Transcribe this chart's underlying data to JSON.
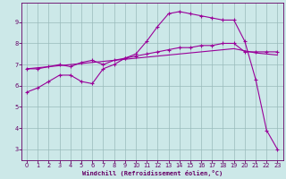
{
  "title": "",
  "xlabel": "Windchill (Refroidissement éolien,°C)",
  "ylabel": "",
  "bg_color": "#cce8e8",
  "line_color": "#990099",
  "grid_color": "#99bbbb",
  "axis_color": "#660066",
  "xlim": [
    -0.5,
    23.5
  ],
  "ylim": [
    2.5,
    9.9
  ],
  "xticks": [
    0,
    1,
    2,
    3,
    4,
    5,
    6,
    7,
    8,
    9,
    10,
    11,
    12,
    13,
    14,
    15,
    16,
    17,
    18,
    19,
    20,
    21,
    22,
    23
  ],
  "yticks": [
    3,
    4,
    5,
    6,
    7,
    8,
    9
  ],
  "series1": {
    "x": [
      0,
      1,
      2,
      3,
      4,
      5,
      6,
      7,
      8,
      9,
      10,
      11,
      12,
      13,
      14,
      15,
      16,
      17,
      18,
      19,
      20,
      21,
      22,
      23
    ],
    "y": [
      5.7,
      5.9,
      6.2,
      6.5,
      6.5,
      6.2,
      6.1,
      6.8,
      7.0,
      7.3,
      7.5,
      8.1,
      8.8,
      9.4,
      9.5,
      9.4,
      9.3,
      9.2,
      9.1,
      9.1,
      8.1,
      6.3,
      3.9,
      3.0
    ]
  },
  "series2": {
    "x": [
      0,
      1,
      2,
      3,
      4,
      5,
      6,
      7,
      8,
      9,
      10,
      11,
      12,
      13,
      14,
      15,
      16,
      17,
      18,
      19,
      20,
      21,
      22,
      23
    ],
    "y": [
      6.8,
      6.8,
      6.9,
      7.0,
      6.9,
      7.1,
      7.2,
      7.0,
      7.2,
      7.3,
      7.4,
      7.5,
      7.6,
      7.7,
      7.8,
      7.8,
      7.9,
      7.9,
      8.0,
      8.0,
      7.6,
      7.6,
      7.6,
      7.6
    ]
  },
  "series3": {
    "x": [
      0,
      1,
      2,
      3,
      4,
      5,
      6,
      7,
      8,
      9,
      10,
      11,
      12,
      13,
      14,
      15,
      16,
      17,
      18,
      19,
      20,
      21,
      22,
      23
    ],
    "y": [
      6.8,
      6.85,
      6.9,
      6.95,
      7.0,
      7.05,
      7.1,
      7.15,
      7.2,
      7.25,
      7.3,
      7.35,
      7.4,
      7.45,
      7.5,
      7.55,
      7.6,
      7.65,
      7.7,
      7.75,
      7.65,
      7.55,
      7.5,
      7.45
    ]
  }
}
